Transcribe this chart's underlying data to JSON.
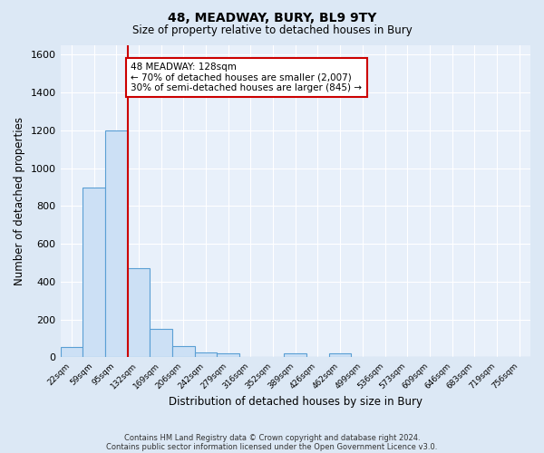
{
  "title": "48, MEADWAY, BURY, BL9 9TY",
  "subtitle": "Size of property relative to detached houses in Bury",
  "xlabel": "Distribution of detached houses by size in Bury",
  "ylabel": "Number of detached properties",
  "footer_line1": "Contains HM Land Registry data © Crown copyright and database right 2024.",
  "footer_line2": "Contains public sector information licensed under the Open Government Licence v3.0.",
  "bin_labels": [
    "22sqm",
    "59sqm",
    "95sqm",
    "132sqm",
    "169sqm",
    "206sqm",
    "242sqm",
    "279sqm",
    "316sqm",
    "352sqm",
    "389sqm",
    "426sqm",
    "462sqm",
    "499sqm",
    "536sqm",
    "573sqm",
    "609sqm",
    "646sqm",
    "683sqm",
    "719sqm",
    "756sqm"
  ],
  "bar_values": [
    55,
    900,
    1200,
    470,
    150,
    60,
    28,
    20,
    0,
    0,
    20,
    0,
    20,
    0,
    0,
    0,
    0,
    0,
    0,
    0,
    0
  ],
  "bar_color": "#cce0f5",
  "bar_edge_color": "#5a9fd4",
  "background_color": "#dce8f5",
  "plot_bg_color": "#e8f0fa",
  "grid_color": "#ffffff",
  "vline_x": 2.5,
  "vline_color": "#cc0000",
  "annotation_line1": "48 MEADWAY: 128sqm",
  "annotation_line2": "← 70% of detached houses are smaller (2,007)",
  "annotation_line3": "30% of semi-detached houses are larger (845) →",
  "annotation_box_color": "#ffffff",
  "annotation_box_edge": "#cc0000",
  "ylim": [
    0,
    1650
  ],
  "yticks": [
    0,
    200,
    400,
    600,
    800,
    1000,
    1200,
    1400,
    1600
  ]
}
